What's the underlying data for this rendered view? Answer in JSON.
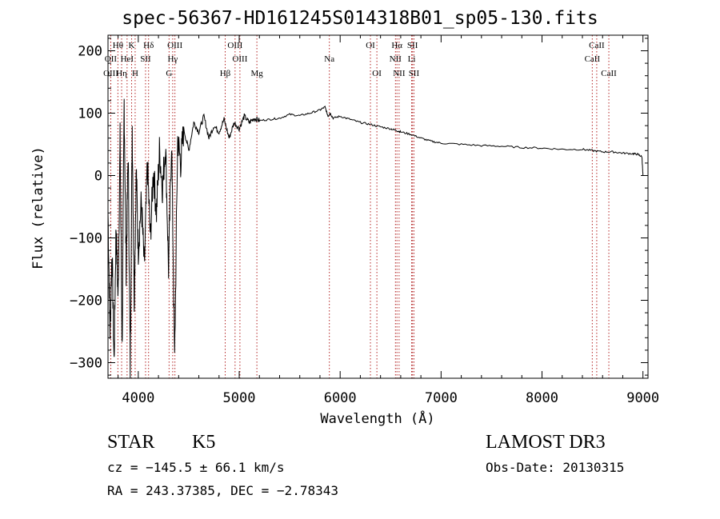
{
  "title": "spec-56367-HD161245S014318B01_sp05-130.fits",
  "info": {
    "object_class": "STAR",
    "subclass": "K5",
    "survey": "LAMOST DR3",
    "redshift_line": "cz = −145.5 ± 66.1 km/s",
    "obs_date": "Obs-Date: 20130315",
    "coords": "RA = 243.37385, DEC =  −2.78343"
  },
  "chart_data": {
    "type": "line",
    "title": "spec-56367-HD161245S014318B01_sp05-130.fits",
    "xlabel": "Wavelength (Å)",
    "ylabel": "Flux (relative)",
    "xlim": [
      3700,
      9050
    ],
    "ylim": [
      -325,
      225
    ],
    "xticks": [
      4000,
      5000,
      6000,
      7000,
      8000,
      9000
    ],
    "yticks": [
      -300,
      -200,
      -100,
      0,
      100,
      200
    ],
    "ytick_labels": [
      "−300",
      "−200",
      "−100",
      "0",
      "100",
      "200"
    ],
    "series": [
      {
        "name": "flux",
        "x": [
          3700,
          3720,
          3740,
          3760,
          3780,
          3800,
          3820,
          3840,
          3860,
          3880,
          3900,
          3920,
          3940,
          3960,
          3980,
          4000,
          4030,
          4060,
          4090,
          4120,
          4150,
          4180,
          4210,
          4240,
          4270,
          4300,
          4330,
          4360,
          4390,
          4420,
          4450,
          4500,
          4550,
          4600,
          4650,
          4700,
          4750,
          4800,
          4850,
          4900,
          4950,
          5000,
          5050,
          5100,
          5150,
          5200,
          5300,
          5400,
          5500,
          5600,
          5700,
          5800,
          5850,
          5880,
          5900,
          5930,
          6000,
          6100,
          6200,
          6300,
          6400,
          6500,
          6560,
          6600,
          6700,
          6800,
          6900,
          7000,
          7200,
          7400,
          7600,
          7800,
          8000,
          8200,
          8400,
          8500,
          8600,
          8700,
          8800,
          8900,
          8950,
          8990,
          9000
        ],
        "values": [
          -60,
          -250,
          -120,
          -300,
          -80,
          -200,
          60,
          -280,
          120,
          -150,
          40,
          -310,
          80,
          -200,
          10,
          -120,
          -40,
          -150,
          20,
          -100,
          10,
          -60,
          40,
          -20,
          50,
          -150,
          60,
          -300,
          60,
          20,
          75,
          40,
          85,
          70,
          95,
          60,
          80,
          70,
          90,
          60,
          85,
          75,
          95,
          85,
          92,
          88,
          90,
          92,
          98,
          96,
          100,
          105,
          110,
          95,
          100,
          92,
          95,
          90,
          85,
          82,
          78,
          75,
          72,
          70,
          66,
          60,
          55,
          52,
          50,
          48,
          47,
          45,
          44,
          42,
          42,
          40,
          38,
          38,
          36,
          35,
          34,
          30,
          0
        ]
      }
    ],
    "lines": [
      {
        "name": "Hθ",
        "wl": 3798,
        "row": 1
      },
      {
        "name": "OII",
        "wl": 3727,
        "row": 2
      },
      {
        "name": "OIII",
        "wl": 3728,
        "row": 3
      },
      {
        "name": "K",
        "wl": 3934,
        "row": 1
      },
      {
        "name": "H",
        "wl": 3969,
        "row": 3
      },
      {
        "name": "HeI",
        "wl": 3889,
        "row": 2
      },
      {
        "name": "Hη",
        "wl": 3835,
        "row": 3
      },
      {
        "name": "SII",
        "wl": 4072,
        "row": 2
      },
      {
        "name": "Hδ",
        "wl": 4102,
        "row": 1
      },
      {
        "name": "OIII",
        "wl": 4363,
        "row": 1
      },
      {
        "name": "Hγ",
        "wl": 4341,
        "row": 2
      },
      {
        "name": "G",
        "wl": 4305,
        "row": 3
      },
      {
        "name": "Hβ",
        "wl": 4861,
        "row": 3
      },
      {
        "name": "OIII",
        "wl": 4959,
        "row": 1
      },
      {
        "name": "OIII",
        "wl": 5007,
        "row": 2
      },
      {
        "name": "Mg",
        "wl": 5175,
        "row": 3
      },
      {
        "name": "Na",
        "wl": 5893,
        "row": 2
      },
      {
        "name": "OI",
        "wl": 6300,
        "row": 1
      },
      {
        "name": "OI",
        "wl": 6364,
        "row": 3
      },
      {
        "name": "Hα",
        "wl": 6563,
        "row": 1
      },
      {
        "name": "NII",
        "wl": 6548,
        "row": 2
      },
      {
        "name": "NII",
        "wl": 6584,
        "row": 3
      },
      {
        "name": "SII",
        "wl": 6717,
        "row": 1
      },
      {
        "name": "Li",
        "wl": 6708,
        "row": 2
      },
      {
        "name": "SII",
        "wl": 6731,
        "row": 3
      },
      {
        "name": "CaII",
        "wl": 8542,
        "row": 1
      },
      {
        "name": "CaII",
        "wl": 8498,
        "row": 2
      },
      {
        "name": "CaII",
        "wl": 8662,
        "row": 3
      }
    ],
    "colors": {
      "spectrum": "#000000",
      "lines": "#b22222",
      "axes": "#000000"
    }
  }
}
